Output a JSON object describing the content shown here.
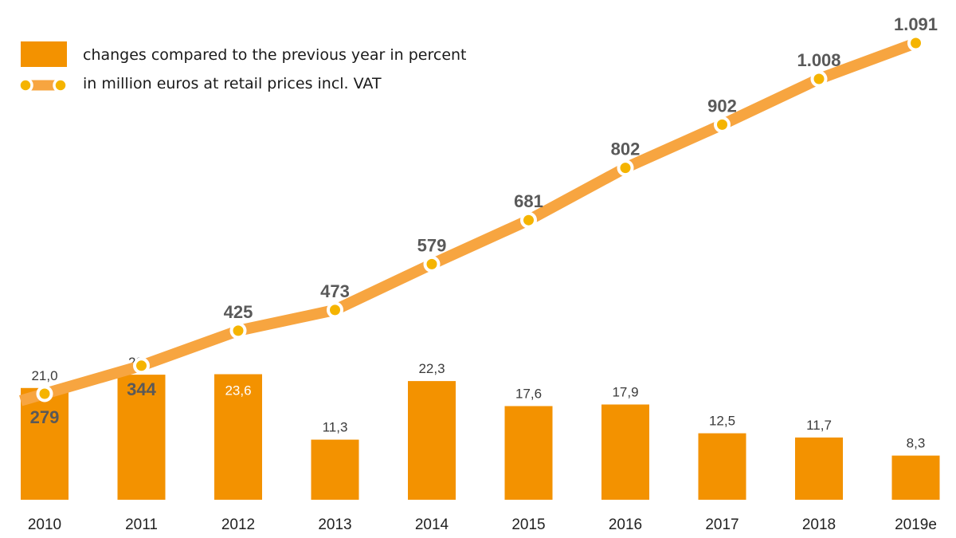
{
  "colors": {
    "bar": "#f39200",
    "line": "#f7a540",
    "marker": "#f5b400",
    "bar_label": "#3a3a3a",
    "line_label": "#595959"
  },
  "legend": {
    "bars_label": "changes compared to the previous year in percent",
    "line_label": "in million euros at retail prices incl. VAT"
  },
  "chart_data": {
    "type": "bar",
    "title": "",
    "xlabel": "",
    "ylabel": "",
    "categories": [
      "2010",
      "2011",
      "2012",
      "2013",
      "2014",
      "2015",
      "2016",
      "2017",
      "2018",
      "2019e"
    ],
    "series": [
      {
        "type": "bar",
        "name": "changes compared to the previous year in percent",
        "values": [
          21.0,
          23.5,
          23.6,
          11.3,
          22.3,
          17.6,
          17.9,
          12.5,
          11.7,
          8.3
        ],
        "labels": [
          "21,0",
          "23,5",
          "23,6",
          "11,3",
          "22,3",
          "17,6",
          "17,9",
          "12,5",
          "11,7",
          "8,3"
        ]
      },
      {
        "type": "line",
        "name": "in million euros at retail prices incl. VAT",
        "values": [
          279,
          344,
          425,
          473,
          579,
          681,
          802,
          902,
          1008,
          1091
        ],
        "labels": [
          "279",
          "344",
          "425",
          "473",
          "579",
          "681",
          "802",
          "902",
          "1.008",
          "1.091"
        ]
      }
    ],
    "bar_axis_range": [
      0,
      40
    ],
    "line_axis_range": [
      60,
      1120
    ],
    "grid": false,
    "legend_position": "top-left"
  }
}
